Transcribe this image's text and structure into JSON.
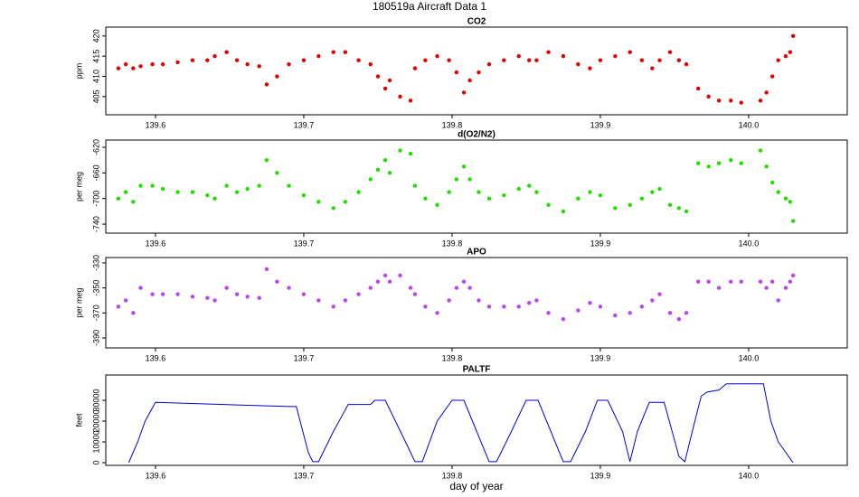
{
  "title": "180519a   Aircraft Data 1",
  "chart_data": [
    {
      "type": "scatter",
      "title": "CO2",
      "ylabel": "ppm",
      "color": "#e00000",
      "x": [
        139.575,
        139.58,
        139.585,
        139.59,
        139.598,
        139.605,
        139.615,
        139.625,
        139.635,
        139.64,
        139.648,
        139.655,
        139.662,
        139.67,
        139.675,
        139.682,
        139.69,
        139.7,
        139.71,
        139.72,
        139.728,
        139.737,
        139.745,
        139.75,
        139.755,
        139.758,
        139.765,
        139.772,
        139.775,
        139.782,
        139.79,
        139.798,
        139.803,
        139.808,
        139.812,
        139.818,
        139.825,
        139.835,
        139.845,
        139.852,
        139.857,
        139.865,
        139.875,
        139.885,
        139.893,
        139.9,
        139.91,
        139.92,
        139.928,
        139.935,
        139.94,
        139.947,
        139.953,
        139.958,
        139.966,
        139.973,
        139.98,
        139.988,
        139.995,
        140.008,
        140.012,
        140.016,
        140.02,
        140.025,
        140.028,
        140.03
      ],
      "values": [
        412,
        413,
        412,
        412.5,
        413,
        413,
        413.5,
        414,
        414,
        415,
        416,
        414,
        413,
        412.5,
        408,
        410,
        413,
        414,
        415,
        416,
        416,
        414,
        413,
        410,
        407,
        409,
        405,
        404,
        412,
        414,
        415,
        414,
        411,
        406,
        409,
        411,
        413,
        414,
        415,
        414,
        414,
        416,
        415,
        413,
        412,
        414,
        415,
        416,
        414,
        412,
        414,
        416,
        414,
        413,
        407,
        405,
        404,
        404,
        403.5,
        404,
        406,
        410,
        414,
        415,
        416,
        420
      ],
      "xlim": [
        139.5665,
        140.0665
      ],
      "ylim": [
        400.5,
        422.2
      ],
      "xticks": [
        139.6,
        139.7,
        139.8,
        139.9,
        {
          "value": 140,
          "label": "140.0"
        }
      ],
      "yticks": [
        405,
        410,
        415,
        420
      ]
    },
    {
      "type": "scatter",
      "title": "d(O2/N2)",
      "ylabel": "per meg",
      "color": "#22dd00",
      "x": [
        139.575,
        139.58,
        139.585,
        139.59,
        139.598,
        139.605,
        139.615,
        139.625,
        139.635,
        139.64,
        139.648,
        139.655,
        139.662,
        139.67,
        139.675,
        139.682,
        139.69,
        139.7,
        139.71,
        139.72,
        139.728,
        139.737,
        139.745,
        139.75,
        139.755,
        139.758,
        139.765,
        139.772,
        139.775,
        139.782,
        139.79,
        139.798,
        139.803,
        139.808,
        139.812,
        139.818,
        139.825,
        139.835,
        139.845,
        139.852,
        139.857,
        139.865,
        139.875,
        139.885,
        139.893,
        139.9,
        139.91,
        139.92,
        139.928,
        139.935,
        139.94,
        139.947,
        139.953,
        139.958,
        139.966,
        139.973,
        139.98,
        139.988,
        139.995,
        140.008,
        140.012,
        140.016,
        140.02,
        140.025,
        140.028,
        140.03
      ],
      "values": [
        -700,
        -690,
        -705,
        -680,
        -680,
        -685,
        -690,
        -690,
        -695,
        -700,
        -680,
        -690,
        -685,
        -680,
        -640,
        -660,
        -680,
        -695,
        -705,
        -715,
        -705,
        -690,
        -670,
        -655,
        -640,
        -660,
        -625,
        -630,
        -680,
        -700,
        -710,
        -690,
        -670,
        -650,
        -670,
        -690,
        -700,
        -695,
        -685,
        -680,
        -690,
        -710,
        -720,
        -700,
        -690,
        -695,
        -715,
        -710,
        -700,
        -690,
        -685,
        -710,
        -715,
        -720,
        -645,
        -650,
        -645,
        -640,
        -645,
        -625,
        -650,
        -675,
        -690,
        -700,
        -705,
        -735
      ],
      "xlim": [
        139.5665,
        140.0665
      ],
      "ylim": [
        -754,
        -608.7
      ],
      "xticks": [
        139.6,
        139.7,
        139.8,
        139.9,
        {
          "value": 140,
          "label": "140.0"
        }
      ],
      "yticks": [
        -620,
        -660,
        -700,
        -740
      ]
    },
    {
      "type": "scatter",
      "title": "APO",
      "ylabel": "per meg",
      "color": "#bb44ee",
      "x": [
        139.575,
        139.58,
        139.585,
        139.59,
        139.598,
        139.605,
        139.615,
        139.625,
        139.635,
        139.64,
        139.648,
        139.655,
        139.662,
        139.67,
        139.675,
        139.682,
        139.69,
        139.7,
        139.71,
        139.72,
        139.728,
        139.737,
        139.745,
        139.75,
        139.755,
        139.758,
        139.765,
        139.772,
        139.775,
        139.782,
        139.79,
        139.798,
        139.803,
        139.808,
        139.812,
        139.818,
        139.825,
        139.835,
        139.845,
        139.852,
        139.857,
        139.865,
        139.875,
        139.885,
        139.893,
        139.9,
        139.91,
        139.92,
        139.928,
        139.935,
        139.94,
        139.947,
        139.953,
        139.958,
        139.966,
        139.973,
        139.98,
        139.988,
        139.995,
        140.008,
        140.012,
        140.016,
        140.02,
        140.025,
        140.028,
        140.03
      ],
      "values": [
        -365,
        -360,
        -370,
        -350,
        -355,
        -355,
        -355,
        -357,
        -358,
        -360,
        -350,
        -355,
        -357,
        -358,
        -335,
        -345,
        -350,
        -355,
        -360,
        -365,
        -360,
        -355,
        -350,
        -345,
        -340,
        -345,
        -340,
        -350,
        -355,
        -365,
        -370,
        -360,
        -350,
        -345,
        -350,
        -360,
        -365,
        -365,
        -365,
        -362,
        -360,
        -370,
        -375,
        -368,
        -362,
        -365,
        -372,
        -370,
        -365,
        -360,
        -355,
        -370,
        -375,
        -370,
        -345,
        -345,
        -350,
        -345,
        -345,
        -345,
        -350,
        -345,
        -360,
        -350,
        -345,
        -340
      ],
      "xlim": [
        139.5665,
        140.0665
      ],
      "ylim": [
        -398,
        -325.7
      ],
      "xticks": [
        139.6,
        139.7,
        139.8,
        139.9,
        {
          "value": 140,
          "label": "140.0"
        }
      ],
      "yticks": [
        -330,
        -350,
        -370,
        -390
      ]
    },
    {
      "type": "line",
      "title": "PALTF",
      "ylabel": "feet",
      "xlabel": "day of year",
      "color": "#0000dd",
      "x": [
        139.582,
        139.585,
        139.588,
        139.593,
        139.6,
        139.69,
        139.695,
        139.703,
        139.706,
        139.71,
        139.72,
        139.73,
        139.745,
        139.748,
        139.755,
        139.77,
        139.775,
        139.78,
        139.79,
        139.8,
        139.808,
        139.825,
        139.83,
        139.84,
        139.85,
        139.858,
        139.875,
        139.88,
        139.89,
        139.898,
        139.905,
        139.915,
        139.92,
        139.925,
        139.933,
        139.943,
        139.953,
        139.957,
        139.962,
        139.968,
        139.972,
        139.98,
        139.985,
        140.01,
        140.015,
        140.02,
        140.025,
        140.03
      ],
      "values": [
        0,
        5000,
        10000,
        20000,
        29000,
        27000,
        27000,
        5000,
        500,
        500,
        15000,
        28000,
        28000,
        30000,
        30000,
        8000,
        500,
        500,
        20000,
        30000,
        30000,
        500,
        500,
        15000,
        30000,
        30000,
        500,
        500,
        15000,
        30000,
        30000,
        15000,
        500,
        15000,
        29000,
        29000,
        3000,
        500,
        15000,
        32000,
        34000,
        35000,
        38000,
        38000,
        20000,
        10000,
        5000,
        0
      ],
      "xlim": [
        139.5665,
        140.0665
      ],
      "ylim": [
        -1300,
        42200
      ],
      "xticks": [
        139.6,
        139.7,
        139.8,
        139.9,
        {
          "value": 140,
          "label": "140.0"
        }
      ],
      "yticks": [
        0,
        10000,
        20000,
        30000
      ]
    }
  ]
}
